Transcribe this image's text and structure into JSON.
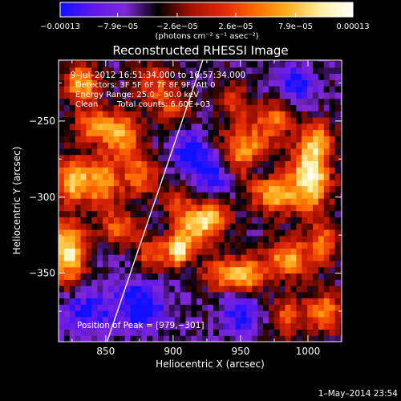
{
  "chart_data": {
    "type": "heatmap",
    "title": "Reconstructed RHESSI Image",
    "xlabel": "Heliocentric X (arcsec)",
    "ylabel": "Heliocentric Y (arcsec)",
    "xlim": [
      815,
      1025
    ],
    "ylim": [
      -395,
      -210
    ],
    "x_ticks": [
      850,
      900,
      950,
      1000
    ],
    "y_ticks": [
      -250,
      -300,
      -350
    ],
    "x_tick_labels": [
      "850",
      "900",
      "950",
      "1000"
    ],
    "y_tick_labels": [
      "−250",
      "−300",
      "−350"
    ],
    "colorbar": {
      "min": -0.00013,
      "max": 0.00013,
      "ticks": [
        -0.00013,
        -7.9e-05,
        -2.6e-05,
        2.6e-05,
        7.9e-05,
        0.00013
      ],
      "tick_labels": [
        "−0.00013",
        "−7.9e−05",
        "−2.6e−05",
        "2.6e−05",
        "7.9e−05",
        "0.00013"
      ],
      "unit_label": "(photons cm⁻² s⁻¹ asec⁻²)",
      "colors": [
        "#1010ff",
        "#6018e8",
        "#8028d8",
        "#000000",
        "#a01000",
        "#e02808",
        "#ff6a00",
        "#ffb020",
        "#fff0a0",
        "#ffffff"
      ]
    },
    "annotations": {
      "time_range": "9–Jul–2012 16:51:34.000 to 16:57:34.000",
      "detectors": "Detectors: 3F 5F 6F 7F 8F 9F; Att 0",
      "energy_range": "Energy Range: 25.0 – 50.0 keV",
      "clean_label": "Clean",
      "total_counts": "Total counts: 6.60E+03",
      "peak_position": "Position of Peak = [979,−301]",
      "peak": [
        979,
        -301
      ]
    },
    "limb_line": {
      "x": [
        851,
        922
      ],
      "y": [
        -395,
        -210
      ]
    },
    "blobs": [
      {
        "x": 1002,
        "y": -286,
        "sx": 10,
        "sy": 16,
        "v": 1.05
      },
      {
        "x": 975,
        "y": -298,
        "sx": 12,
        "sy": 9,
        "v": 0.75
      },
      {
        "x": 955,
        "y": -270,
        "sx": 14,
        "sy": 12,
        "v": 0.75
      },
      {
        "x": 965,
        "y": -280,
        "sx": 7,
        "sy": 6,
        "v": -0.5
      },
      {
        "x": 975,
        "y": -248,
        "sx": 10,
        "sy": 8,
        "v": 0.55
      },
      {
        "x": 1008,
        "y": -262,
        "sx": 8,
        "sy": 8,
        "v": 0.55
      },
      {
        "x": 822,
        "y": -336,
        "sx": 9,
        "sy": 14,
        "v": 1.0
      },
      {
        "x": 826,
        "y": -289,
        "sx": 9,
        "sy": 10,
        "v": 0.85
      },
      {
        "x": 832,
        "y": -225,
        "sx": 9,
        "sy": 9,
        "v": 0.8
      },
      {
        "x": 840,
        "y": -253,
        "sx": 10,
        "sy": 8,
        "v": 0.6
      },
      {
        "x": 848,
        "y": -290,
        "sx": 9,
        "sy": 12,
        "v": 0.75
      },
      {
        "x": 862,
        "y": -258,
        "sx": 10,
        "sy": 10,
        "v": 0.75
      },
      {
        "x": 875,
        "y": -285,
        "sx": 9,
        "sy": 10,
        "v": 0.6
      },
      {
        "x": 860,
        "y": -320,
        "sx": 10,
        "sy": 8,
        "v": 0.55
      },
      {
        "x": 885,
        "y": -338,
        "sx": 9,
        "sy": 8,
        "v": 0.55
      },
      {
        "x": 902,
        "y": -303,
        "sx": 7,
        "sy": 7,
        "v": 0.45
      },
      {
        "x": 904,
        "y": -335,
        "sx": 6,
        "sy": 7,
        "v": 0.9
      },
      {
        "x": 916,
        "y": -320,
        "sx": 10,
        "sy": 10,
        "v": 0.75
      },
      {
        "x": 930,
        "y": -312,
        "sx": 9,
        "sy": 8,
        "v": 0.6
      },
      {
        "x": 936,
        "y": -350,
        "sx": 10,
        "sy": 8,
        "v": 0.6
      },
      {
        "x": 955,
        "y": -352,
        "sx": 9,
        "sy": 9,
        "v": 0.7
      },
      {
        "x": 985,
        "y": -340,
        "sx": 12,
        "sy": 9,
        "v": 0.75
      },
      {
        "x": 1012,
        "y": -330,
        "sx": 8,
        "sy": 9,
        "v": 0.6
      },
      {
        "x": 1012,
        "y": -375,
        "sx": 9,
        "sy": 9,
        "v": 0.7
      },
      {
        "x": 985,
        "y": -378,
        "sx": 8,
        "sy": 9,
        "v": 0.55
      },
      {
        "x": 946,
        "y": -237,
        "sx": 8,
        "sy": 8,
        "v": 0.45
      },
      {
        "x": 900,
        "y": -240,
        "sx": 9,
        "sy": 8,
        "v": 0.45
      },
      {
        "x": 885,
        "y": -225,
        "sx": 9,
        "sy": 9,
        "v": 0.5
      },
      {
        "x": 913,
        "y": -270,
        "sx": 9,
        "sy": 9,
        "v": -0.55
      },
      {
        "x": 930,
        "y": -285,
        "sx": 10,
        "sy": 10,
        "v": -0.5
      },
      {
        "x": 875,
        "y": -370,
        "sx": 14,
        "sy": 12,
        "v": -0.55
      },
      {
        "x": 835,
        "y": -375,
        "sx": 12,
        "sy": 10,
        "v": -0.45
      },
      {
        "x": 950,
        "y": -375,
        "sx": 10,
        "sy": 10,
        "v": -0.5
      },
      {
        "x": 990,
        "y": -225,
        "sx": 10,
        "sy": 9,
        "v": -0.45
      }
    ]
  },
  "footer": {
    "timestamp": "1–May–2014 23:54"
  }
}
